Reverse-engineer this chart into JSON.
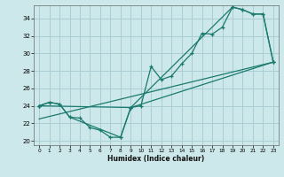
{
  "xlabel": "Humidex (Indice chaleur)",
  "bg_color": "#cde8ea",
  "grid_color": "#aacdd4",
  "line_color": "#1a7a6e",
  "xlim": [
    -0.5,
    23.5
  ],
  "ylim": [
    19.5,
    35.5
  ],
  "xticks": [
    0,
    1,
    2,
    3,
    4,
    5,
    6,
    7,
    8,
    9,
    10,
    11,
    12,
    13,
    14,
    15,
    16,
    17,
    18,
    19,
    20,
    21,
    22,
    23
  ],
  "yticks": [
    20,
    22,
    24,
    26,
    28,
    30,
    32,
    34
  ],
  "line1_x": [
    0,
    1,
    2,
    3,
    4,
    5,
    6,
    7,
    8,
    9,
    10,
    11,
    12,
    13,
    14,
    15,
    16,
    17,
    18,
    19,
    20,
    21,
    22,
    23
  ],
  "line1_y": [
    24.0,
    24.4,
    24.2,
    22.7,
    22.6,
    21.5,
    21.2,
    20.4,
    20.4,
    23.8,
    24.0,
    28.5,
    27.0,
    27.4,
    28.8,
    30.0,
    32.3,
    32.2,
    33.0,
    35.3,
    35.0,
    34.5,
    34.5,
    29.0
  ],
  "line2_x": [
    0,
    1,
    2,
    3,
    8,
    9,
    23
  ],
  "line2_y": [
    24.0,
    24.4,
    24.2,
    22.7,
    20.4,
    23.8,
    29.0
  ],
  "line3_x": [
    0,
    23
  ],
  "line3_y": [
    22.5,
    29.0
  ],
  "line4_x": [
    0,
    9,
    19,
    20,
    21,
    22,
    23
  ],
  "line4_y": [
    24.0,
    23.8,
    35.3,
    35.0,
    34.5,
    34.5,
    29.0
  ]
}
